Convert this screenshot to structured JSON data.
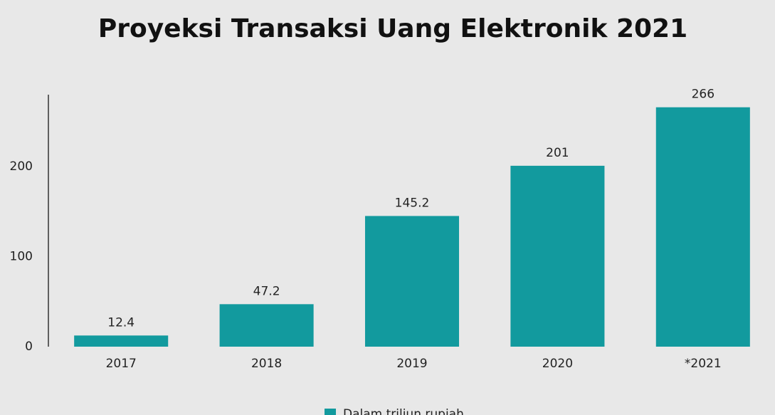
{
  "chart_data": {
    "type": "bar",
    "title": "Proyeksi Transaksi Uang Elektronik 2021",
    "categories": [
      "2017",
      "2018",
      "2019",
      "2020",
      "*2021"
    ],
    "series": [
      {
        "name": "Dalam triliun rupiah",
        "color": "#129a9e",
        "values": [
          12.4,
          47.2,
          145.2,
          201,
          266
        ]
      }
    ],
    "ylim": [
      0,
      280
    ],
    "yticks": [
      0,
      100,
      200
    ],
    "grid": false,
    "legend": "bottom"
  }
}
